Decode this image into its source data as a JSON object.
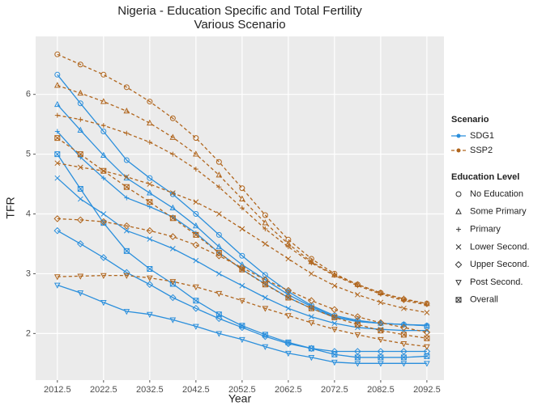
{
  "chart_data": {
    "type": "line",
    "title": "Nigeria - Education Specific and Total Fertility",
    "subtitle": "Various Scenario",
    "x_label": "Year",
    "y_label": "TFR",
    "x": [
      2012.5,
      2017.5,
      2022.5,
      2027.5,
      2032.5,
      2037.5,
      2042.5,
      2047.5,
      2052.5,
      2057.5,
      2062.5,
      2067.5,
      2072.5,
      2077.5,
      2082.5,
      2087.5,
      2092.5
    ],
    "xlim": [
      2007.8,
      2096.2
    ],
    "xticks": [
      2012.5,
      2022.5,
      2032.5,
      2042.5,
      2052.5,
      2062.5,
      2072.5,
      2082.5,
      2092.5
    ],
    "ylim": [
      1.22,
      6.97
    ],
    "yticks": [
      2,
      3,
      4,
      5,
      6
    ],
    "grid": true,
    "scenario_legend_title": "Scenario",
    "level_legend_title": "Education Level",
    "education_levels": [
      {
        "name": "No Education",
        "marker": "circle"
      },
      {
        "name": "Some Primary",
        "marker": "triangle"
      },
      {
        "name": "Primary",
        "marker": "plus"
      },
      {
        "name": "Lower Second.",
        "marker": "cross"
      },
      {
        "name": "Upper Second.",
        "marker": "diamond"
      },
      {
        "name": "Post Second.",
        "marker": "triangle-down"
      },
      {
        "name": "Overall",
        "marker": "boxed-cross"
      }
    ],
    "scenarios": [
      {
        "name": "SDG1",
        "color": "#2b8fdc",
        "dashed": false,
        "series": [
          {
            "values": [
              6.33,
              5.85,
              5.38,
              4.9,
              4.6,
              4.33,
              4.0,
              3.65,
              3.3,
              2.98,
              2.7,
              2.47,
              2.3,
              2.22,
              2.17,
              2.15,
              2.13
            ]
          },
          {
            "values": [
              5.83,
              5.4,
              4.98,
              4.6,
              4.35,
              4.1,
              3.8,
              3.45,
              3.15,
              2.9,
              2.65,
              2.45,
              2.28,
              2.2,
              2.17,
              2.15,
              2.13
            ]
          },
          {
            "values": [
              5.38,
              4.95,
              4.6,
              4.27,
              4.12,
              3.95,
              3.68,
              3.35,
              3.07,
              2.83,
              2.6,
              2.42,
              2.27,
              2.2,
              2.17,
              2.15,
              2.14
            ]
          },
          {
            "values": [
              4.6,
              4.25,
              4.0,
              3.72,
              3.58,
              3.42,
              3.22,
              3.0,
              2.8,
              2.6,
              2.42,
              2.28,
              2.17,
              2.1,
              2.07,
              2.05,
              2.05
            ]
          },
          {
            "values": [
              3.72,
              3.5,
              3.27,
              3.02,
              2.82,
              2.6,
              2.42,
              2.25,
              2.1,
              1.95,
              1.83,
              1.75,
              1.7,
              1.7,
              1.7,
              1.7,
              1.7
            ]
          },
          {
            "values": [
              2.81,
              2.68,
              2.52,
              2.37,
              2.32,
              2.23,
              2.12,
              2.0,
              1.9,
              1.78,
              1.67,
              1.6,
              1.52,
              1.5,
              1.5,
              1.5,
              1.5
            ]
          },
          {
            "values": [
              5.0,
              4.42,
              3.85,
              3.38,
              3.08,
              2.83,
              2.55,
              2.32,
              2.13,
              1.98,
              1.85,
              1.75,
              1.65,
              1.6,
              1.6,
              1.6,
              1.62
            ]
          }
        ]
      },
      {
        "name": "SSP2",
        "color": "#b0651c",
        "dashed": true,
        "series": [
          {
            "values": [
              6.67,
              6.5,
              6.33,
              6.12,
              5.88,
              5.6,
              5.27,
              4.87,
              4.43,
              3.98,
              3.57,
              3.25,
              3.0,
              2.82,
              2.68,
              2.57,
              2.5
            ]
          },
          {
            "values": [
              6.15,
              6.02,
              5.88,
              5.72,
              5.52,
              5.28,
              5.0,
              4.65,
              4.25,
              3.85,
              3.5,
              3.2,
              2.98,
              2.82,
              2.68,
              2.58,
              2.5
            ]
          },
          {
            "values": [
              5.65,
              5.58,
              5.48,
              5.35,
              5.2,
              5.0,
              4.75,
              4.45,
              4.1,
              3.75,
              3.45,
              3.18,
              2.97,
              2.8,
              2.66,
              2.55,
              2.48
            ]
          },
          {
            "values": [
              4.85,
              4.78,
              4.72,
              4.62,
              4.5,
              4.35,
              4.2,
              4.0,
              3.75,
              3.5,
              3.25,
              3.0,
              2.8,
              2.65,
              2.52,
              2.42,
              2.35
            ]
          },
          {
            "values": [
              3.92,
              3.9,
              3.87,
              3.8,
              3.72,
              3.62,
              3.48,
              3.3,
              3.1,
              2.9,
              2.72,
              2.55,
              2.4,
              2.28,
              2.18,
              2.1,
              2.02
            ]
          },
          {
            "values": [
              2.95,
              2.96,
              2.97,
              2.97,
              2.93,
              2.87,
              2.78,
              2.67,
              2.55,
              2.42,
              2.3,
              2.18,
              2.07,
              1.98,
              1.9,
              1.83,
              1.78
            ]
          },
          {
            "values": [
              5.27,
              5.0,
              4.72,
              4.45,
              4.2,
              3.93,
              3.65,
              3.35,
              3.07,
              2.82,
              2.6,
              2.42,
              2.27,
              2.15,
              2.05,
              1.98,
              1.92
            ]
          }
        ]
      }
    ]
  }
}
